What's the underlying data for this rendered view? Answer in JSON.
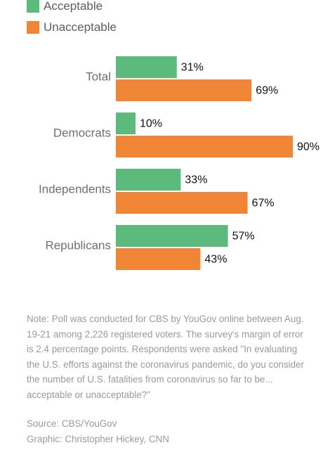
{
  "chart_data": {
    "type": "bar",
    "orientation": "horizontal",
    "categories": [
      "Total",
      "Democrats",
      "Independents",
      "Republicans"
    ],
    "series": [
      {
        "name": "Acceptable",
        "values": [
          31,
          10,
          33,
          57
        ],
        "color": "#5cba7d"
      },
      {
        "name": "Unacceptable",
        "values": [
          69,
          90,
          67,
          43
        ],
        "color": "#ef8535"
      }
    ],
    "value_labels": {
      "Acceptable": [
        "31%",
        "10%",
        "33%",
        "57%"
      ],
      "Unacceptable": [
        "69%",
        "90%",
        "67%",
        "43%"
      ]
    },
    "xlim": [
      0,
      100
    ],
    "unit": "%",
    "legend_position": "top-left",
    "grid": false
  },
  "note": "Note: Poll was conducted for CBS by YouGov online between Aug. 19-21 among 2,226 registered voters. The survey's margin of error is 2.4 percentage points. Respondents were asked \"In evaluating the U.S. efforts against the coronavirus pandemic, do you consider the number of U.S. fatalities from coronavirus so far to be... acceptable or unacceptable?\"",
  "source": "Source: CBS/YouGov",
  "credit": "Graphic: Christopher Hickey, CNN"
}
